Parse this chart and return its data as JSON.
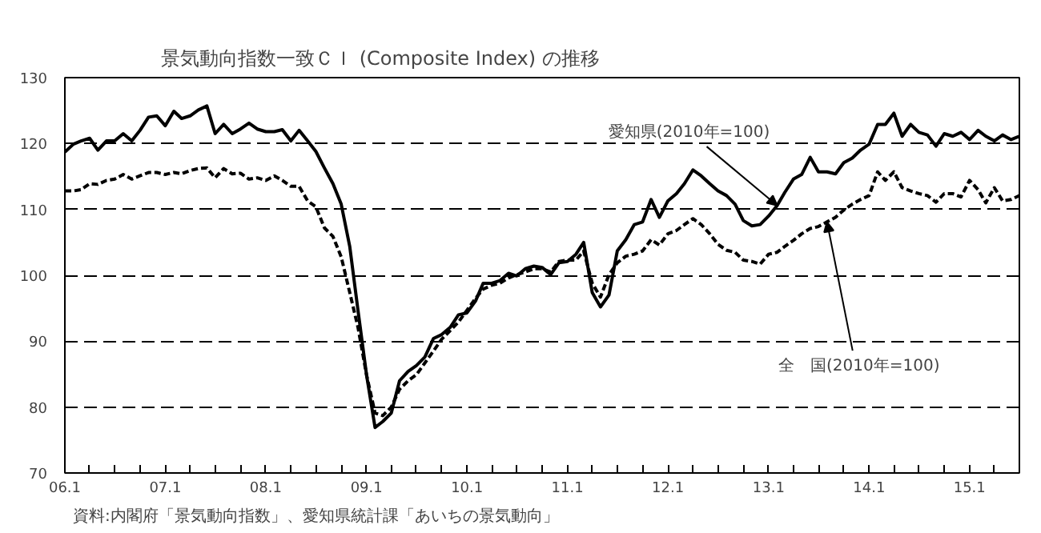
{
  "chart_data": {
    "type": "line",
    "title": "景気動向指数一致ＣＩ (Composite Index) の推移",
    "x": [
      "2006-01",
      "2006-02",
      "2006-03",
      "2006-04",
      "2006-05",
      "2006-06",
      "2006-07",
      "2006-08",
      "2006-09",
      "2006-10",
      "2006-11",
      "2006-12",
      "2007-01",
      "2007-02",
      "2007-03",
      "2007-04",
      "2007-05",
      "2007-06",
      "2007-07",
      "2007-08",
      "2007-09",
      "2007-10",
      "2007-11",
      "2007-12",
      "2008-01",
      "2008-02",
      "2008-03",
      "2008-04",
      "2008-05",
      "2008-06",
      "2008-07",
      "2008-08",
      "2008-09",
      "2008-10",
      "2008-11",
      "2008-12",
      "2009-01",
      "2009-02",
      "2009-03",
      "2009-04",
      "2009-05",
      "2009-06",
      "2009-07",
      "2009-08",
      "2009-09",
      "2009-10",
      "2009-11",
      "2009-12",
      "2010-01",
      "2010-02",
      "2010-03",
      "2010-04",
      "2010-05",
      "2010-06",
      "2010-07",
      "2010-08",
      "2010-09",
      "2010-10",
      "2010-11",
      "2010-12",
      "2011-01",
      "2011-02",
      "2011-03",
      "2011-04",
      "2011-05",
      "2011-06",
      "2011-07",
      "2011-08",
      "2011-09",
      "2011-10",
      "2011-11",
      "2011-12",
      "2012-01",
      "2012-02",
      "2012-03",
      "2012-04",
      "2012-05",
      "2012-06",
      "2012-07",
      "2012-08",
      "2012-09",
      "2012-10",
      "2012-11",
      "2012-12",
      "2013-01",
      "2013-02",
      "2013-03",
      "2013-04",
      "2013-05",
      "2013-06",
      "2013-07",
      "2013-08",
      "2013-09",
      "2013-10",
      "2013-11",
      "2013-12",
      "2014-01",
      "2014-02",
      "2014-03",
      "2014-04",
      "2014-05",
      "2014-06",
      "2014-07",
      "2014-08",
      "2014-09",
      "2014-10",
      "2014-11",
      "2014-12",
      "2015-01",
      "2015-02",
      "2015-03",
      "2015-04",
      "2015-05",
      "2015-06",
      "2015-07"
    ],
    "series": [
      {
        "color": "#000000",
        "line_style": "solid",
        "values": [
          118.7,
          119.9,
          120.4,
          120.8,
          119.0,
          120.4,
          120.4,
          121.5,
          120.4,
          122.0,
          124.0,
          124.2,
          122.7,
          124.9,
          123.8,
          124.2,
          125.1,
          125.7,
          121.5,
          122.9,
          121.5,
          122.2,
          123.1,
          122.2,
          121.8,
          121.8,
          122.1,
          120.4,
          122.0,
          120.4,
          118.8,
          116.3,
          113.9,
          110.8,
          104.4,
          94.7,
          84.9,
          76.9,
          77.8,
          79.1,
          84.0,
          85.4,
          86.3,
          87.6,
          90.4,
          91.0,
          92.1,
          94.0,
          94.3,
          96.1,
          98.8,
          98.8,
          99.2,
          100.3,
          99.9,
          101.0,
          101.4,
          101.2,
          100.1,
          101.9,
          102.1,
          103.2,
          105.0,
          97.4,
          95.2,
          97.0,
          103.7,
          105.4,
          107.7,
          108.1,
          111.5,
          108.8,
          111.3,
          112.4,
          113.9,
          116.0,
          115.1,
          113.9,
          112.8,
          112.1,
          110.8,
          108.3,
          107.5,
          107.7,
          109.0,
          110.6,
          112.6,
          114.6,
          115.3,
          117.9,
          115.7,
          115.7,
          115.4,
          117.1,
          117.8,
          119.0,
          119.9,
          122.9,
          122.9,
          124.6,
          121.1,
          122.9,
          121.7,
          121.3,
          119.6,
          121.5,
          121.1,
          121.7,
          120.6,
          122.0,
          121.1,
          120.4,
          121.3,
          120.6,
          121.1
        ]
      },
      {
        "color": "#000000",
        "line_style": "dashed",
        "values": [
          112.8,
          112.8,
          113.0,
          113.9,
          113.8,
          114.4,
          114.6,
          115.3,
          114.6,
          115.1,
          115.6,
          115.6,
          115.3,
          115.6,
          115.4,
          115.9,
          116.2,
          116.3,
          114.8,
          116.2,
          115.4,
          115.5,
          114.6,
          114.8,
          114.4,
          115.1,
          114.4,
          113.5,
          113.5,
          111.3,
          110.4,
          107.2,
          105.9,
          102.8,
          97.4,
          92.1,
          84.9,
          79.1,
          78.7,
          80.0,
          82.7,
          84.0,
          84.9,
          86.7,
          88.5,
          90.3,
          91.6,
          92.9,
          94.7,
          96.5,
          97.9,
          98.5,
          98.8,
          99.6,
          100.1,
          100.5,
          101.0,
          101.0,
          100.5,
          102.1,
          102.3,
          102.3,
          103.7,
          98.8,
          96.7,
          100.1,
          101.9,
          102.9,
          103.2,
          103.7,
          105.4,
          104.6,
          106.3,
          106.8,
          107.7,
          108.6,
          107.7,
          106.3,
          104.7,
          103.8,
          103.5,
          102.3,
          102.1,
          101.7,
          103.2,
          103.5,
          104.4,
          105.3,
          106.3,
          107.1,
          107.4,
          108.1,
          108.8,
          109.9,
          110.8,
          111.5,
          112.1,
          115.7,
          114.4,
          115.7,
          113.3,
          112.8,
          112.4,
          112.1,
          111.1,
          112.4,
          112.4,
          111.9,
          114.4,
          113.0,
          111.0,
          113.3,
          111.3,
          111.5,
          112.1
        ]
      }
    ],
    "xlim": [
      "2006-01",
      "2015-07"
    ],
    "xticks": [
      {
        "value": "2006-01",
        "label": "06.1"
      },
      {
        "value": "2006-04",
        "label": null
      },
      {
        "value": "2006-07",
        "label": null
      },
      {
        "value": "2006-10",
        "label": null
      },
      {
        "value": "2007-01",
        "label": "07.1"
      },
      {
        "value": "2007-04",
        "label": null
      },
      {
        "value": "2007-07",
        "label": null
      },
      {
        "value": "2007-10",
        "label": null
      },
      {
        "value": "2008-01",
        "label": "08.1"
      },
      {
        "value": "2008-04",
        "label": null
      },
      {
        "value": "2008-07",
        "label": null
      },
      {
        "value": "2008-10",
        "label": null
      },
      {
        "value": "2009-01",
        "label": "09.1"
      },
      {
        "value": "2009-04",
        "label": null
      },
      {
        "value": "2009-07",
        "label": null
      },
      {
        "value": "2009-10",
        "label": null
      },
      {
        "value": "2010-01",
        "label": "10.1"
      },
      {
        "value": "2010-04",
        "label": null
      },
      {
        "value": "2010-07",
        "label": null
      },
      {
        "value": "2010-10",
        "label": null
      },
      {
        "value": "2011-01",
        "label": "11.1"
      },
      {
        "value": "2011-04",
        "label": null
      },
      {
        "value": "2011-07",
        "label": null
      },
      {
        "value": "2011-10",
        "label": null
      },
      {
        "value": "2012-01",
        "label": "12.1"
      },
      {
        "value": "2012-04",
        "label": null
      },
      {
        "value": "2012-07",
        "label": null
      },
      {
        "value": "2012-10",
        "label": null
      },
      {
        "value": "2013-01",
        "label": "13.1"
      },
      {
        "value": "2013-04",
        "label": null
      },
      {
        "value": "2013-07",
        "label": null
      },
      {
        "value": "2013-10",
        "label": null
      },
      {
        "value": "2014-01",
        "label": "14.1"
      },
      {
        "value": "2014-04",
        "label": null
      },
      {
        "value": "2014-07",
        "label": null
      },
      {
        "value": "2014-10",
        "label": null
      },
      {
        "value": "2015-01",
        "label": "15.1"
      },
      {
        "value": "2015-04",
        "label": null
      }
    ],
    "ylim": [
      70,
      130
    ],
    "yticks": [
      70,
      80,
      90,
      100,
      110,
      120,
      130
    ],
    "grid": "y",
    "annotations": [
      {
        "text": "愛知県(2010年=100)",
        "x": "2013-02",
        "y": 110.6
      },
      {
        "text": "全　国(2010年=100)",
        "x": "2013-08",
        "y": 108.1
      },
      "資料:内閣府「景気動向指数」、愛知県統計課「あいちの景気動向」"
    ]
  }
}
